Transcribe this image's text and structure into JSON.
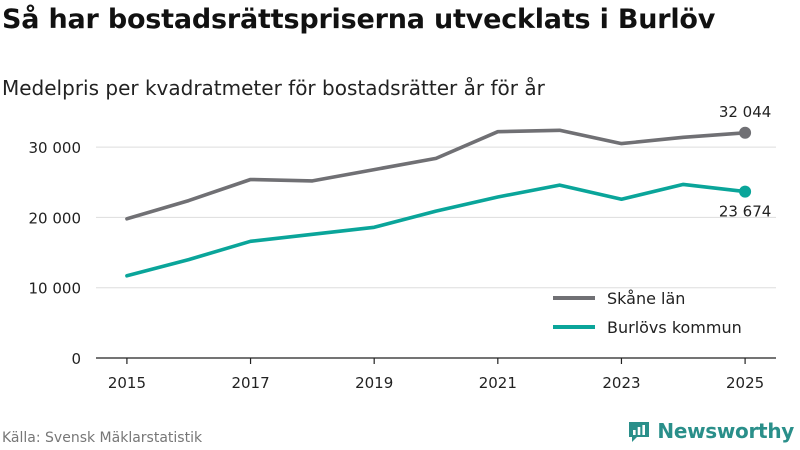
{
  "header": {
    "title": "Så har bostadsrättspriserna utvecklats i Burlöv",
    "subtitle": "Medelpris per kvadratmeter för bostadsrätter år för år"
  },
  "footer": {
    "source": "Källa: Svensk Mäklarstatistik",
    "brand": "Newsworthy"
  },
  "colors": {
    "skane": "#707074",
    "burlov": "#0aa59a",
    "grid": "#dddddd",
    "axis": "#222222",
    "brand": "#2a8f8a"
  },
  "chart_data": {
    "type": "line",
    "title": "Så har bostadsrättspriserna utvecklats i Burlöv",
    "subtitle": "Medelpris per kvadratmeter för bostadsrätter år för år",
    "xlabel": "",
    "ylabel": "",
    "x": [
      2015,
      2016,
      2017,
      2018,
      2019,
      2020,
      2021,
      2022,
      2023,
      2024,
      2025
    ],
    "xticks": [
      2015,
      2017,
      2019,
      2021,
      2023,
      2025
    ],
    "xtick_labels": [
      "2015",
      "2017",
      "2019",
      "2021",
      "2023",
      "2025"
    ],
    "yticks": [
      0,
      10000,
      20000,
      30000
    ],
    "ytick_labels": [
      "0",
      "10 000",
      "20 000",
      "30 000"
    ],
    "ylim": [
      0,
      35000
    ],
    "grid": true,
    "legend_position": "bottom-right",
    "series": [
      {
        "name": "Skåne län",
        "color": "#707074",
        "values": [
          19800,
          22400,
          25400,
          25200,
          26800,
          28400,
          32200,
          32400,
          30500,
          31400,
          32044
        ],
        "end_label": "32 044"
      },
      {
        "name": "Burlövs kommun",
        "color": "#0aa59a",
        "values": [
          11700,
          14000,
          16600,
          17600,
          18600,
          20900,
          22900,
          24600,
          22600,
          24700,
          23674
        ],
        "end_label": "23 674"
      }
    ]
  }
}
